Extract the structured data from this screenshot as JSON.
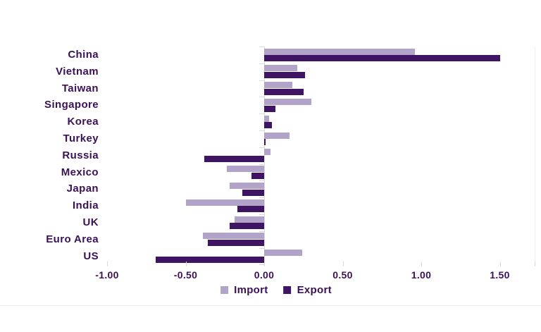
{
  "chart_data": {
    "type": "bar",
    "orientation": "horizontal",
    "title": "",
    "xlabel": "",
    "ylabel": "",
    "categories": [
      "China",
      "Vietnam",
      "Taiwan",
      "Singapore",
      "Korea",
      "Turkey",
      "Russia",
      "Mexico",
      "Japan",
      "India",
      "UK",
      "Euro Area",
      "US"
    ],
    "series": [
      {
        "name": "Import",
        "color": "#B2A3C9",
        "values": [
          0.96,
          0.21,
          0.18,
          0.3,
          0.03,
          0.16,
          0.04,
          -0.24,
          -0.22,
          -0.5,
          -0.19,
          -0.39,
          0.24
        ]
      },
      {
        "name": "Export",
        "color": "#3F1463",
        "values": [
          1.5,
          0.26,
          0.25,
          0.07,
          0.05,
          0.01,
          -0.38,
          -0.08,
          -0.14,
          -0.17,
          -0.22,
          -0.36,
          -0.69
        ]
      }
    ],
    "x_ticks": [
      -1.0,
      -0.5,
      0.0,
      0.5,
      1.0,
      1.5
    ],
    "x_tick_labels": [
      "-1.00",
      "-0.50",
      "0.00",
      "0.50",
      "1.00",
      "1.50"
    ],
    "xlim": [
      -1.02,
      1.72
    ],
    "grid": false,
    "legend_position": "bottom",
    "text_color": "#3A1156"
  }
}
